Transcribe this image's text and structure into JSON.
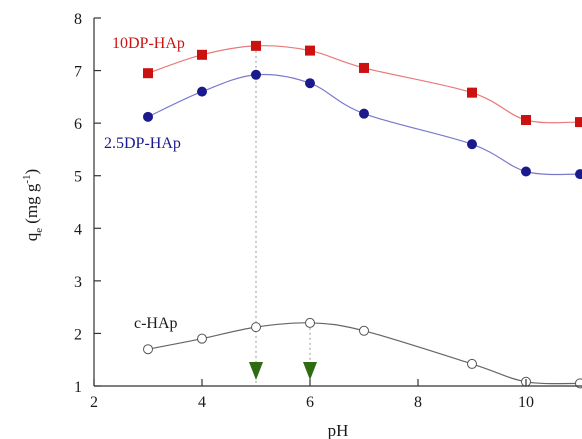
{
  "chart_data": {
    "type": "line",
    "title": "",
    "xlabel": "pH",
    "ylabel_main": "q",
    "ylabel_sub": "e",
    "ylabel_unit": "(mg g",
    "ylabel_sup": "-1",
    "ylabel_close": ")",
    "xlim": [
      2,
      11
    ],
    "ylim": [
      1,
      8
    ],
    "xticks": [
      2,
      4,
      6,
      8,
      10
    ],
    "yticks": [
      1,
      2,
      3,
      4,
      5,
      6,
      7,
      8
    ],
    "grid": false,
    "series": [
      {
        "name": "10DP-HAp",
        "color": "#cc1111",
        "line_color": "#e87a7a",
        "marker": "square-filled",
        "x": [
          3,
          4,
          5,
          6,
          7,
          9,
          10,
          11
        ],
        "y": [
          6.95,
          7.3,
          7.47,
          7.38,
          7.05,
          6.58,
          6.06,
          6.02
        ]
      },
      {
        "name": "2.5DP-HAp",
        "color": "#1a1a8c",
        "line_color": "#7a7acc",
        "marker": "circle-filled",
        "x": [
          3,
          4,
          5,
          6,
          7,
          9,
          10,
          11
        ],
        "y": [
          6.12,
          6.6,
          6.92,
          6.76,
          6.18,
          5.6,
          5.08,
          5.03
        ]
      },
      {
        "name": "c-HAp",
        "color": "#555555",
        "line_color": "#666666",
        "marker": "circle-open",
        "x": [
          3,
          4,
          5,
          6,
          7,
          9,
          10,
          11
        ],
        "y": [
          1.7,
          1.9,
          2.12,
          2.2,
          2.05,
          1.42,
          1.08,
          1.05
        ]
      }
    ],
    "markers": {
      "color": "#2e6b12",
      "x": [
        5,
        6
      ],
      "guide_tops": [
        7.47,
        2.2
      ]
    }
  }
}
